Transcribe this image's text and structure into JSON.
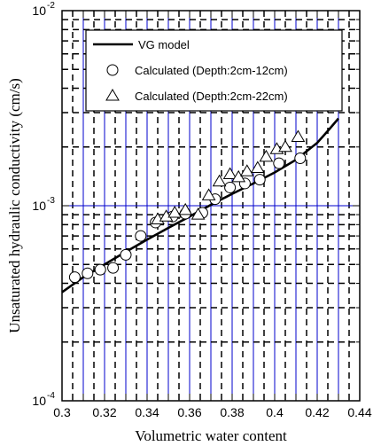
{
  "chart_data": {
    "type": "scatter",
    "title": "",
    "xlabel": "Volumetric water content",
    "ylabel": "Unsaturated hydraulic conductivity (cm/s)",
    "xlim": [
      0.3,
      0.44
    ],
    "ylim": [
      0.0001,
      0.01
    ],
    "y_scale": "log",
    "x_ticks": [
      "0.3",
      "0.32",
      "0.34",
      "0.36",
      "0.38",
      "0.4",
      "0.42",
      "0.44"
    ],
    "y_ticks": [
      {
        "base": "10",
        "exp": "-4",
        "value": 0.0001
      },
      {
        "base": "10",
        "exp": "-3",
        "value": 0.001
      },
      {
        "base": "10",
        "exp": "-2",
        "value": 0.01
      }
    ],
    "legend_position": "top-right",
    "colors": {
      "grid_major": "#0000cc",
      "grid_minor": "#000000",
      "series": "#000000"
    },
    "series": [
      {
        "name": "VG model",
        "marker": "line",
        "x": [
          0.3,
          0.31,
          0.32,
          0.33,
          0.34,
          0.35,
          0.36,
          0.37,
          0.38,
          0.39,
          0.4,
          0.41,
          0.42,
          0.425,
          0.43
        ],
        "y": [
          0.00036,
          0.00043,
          0.0005,
          0.00058,
          0.00067,
          0.00077,
          0.00088,
          0.00101,
          0.00115,
          0.0013,
          0.00148,
          0.00172,
          0.0021,
          0.00242,
          0.0028
        ]
      },
      {
        "name": "Calculated (Depth:2cm-12cm)",
        "marker": "circle",
        "x": [
          0.306,
          0.312,
          0.318,
          0.324,
          0.33,
          0.337,
          0.344,
          0.352,
          0.358,
          0.366,
          0.372,
          0.379,
          0.386,
          0.393,
          0.402,
          0.412
        ],
        "y": [
          0.00043,
          0.00045,
          0.00047,
          0.00048,
          0.00056,
          0.0007,
          0.00082,
          0.00088,
          0.00091,
          0.00092,
          0.00108,
          0.00124,
          0.0013,
          0.00136,
          0.00165,
          0.00175
        ]
      },
      {
        "name": "Calculated (Depth:2cm-22cm)",
        "marker": "triangle",
        "x": [
          0.345,
          0.349,
          0.353,
          0.358,
          0.364,
          0.369,
          0.374,
          0.379,
          0.383,
          0.387,
          0.392,
          0.396,
          0.401,
          0.405,
          0.411
        ],
        "y": [
          0.00085,
          0.00088,
          0.00092,
          0.00095,
          0.0009,
          0.00113,
          0.00133,
          0.00145,
          0.0014,
          0.0015,
          0.00156,
          0.00178,
          0.00195,
          0.002,
          0.00225
        ]
      }
    ]
  }
}
